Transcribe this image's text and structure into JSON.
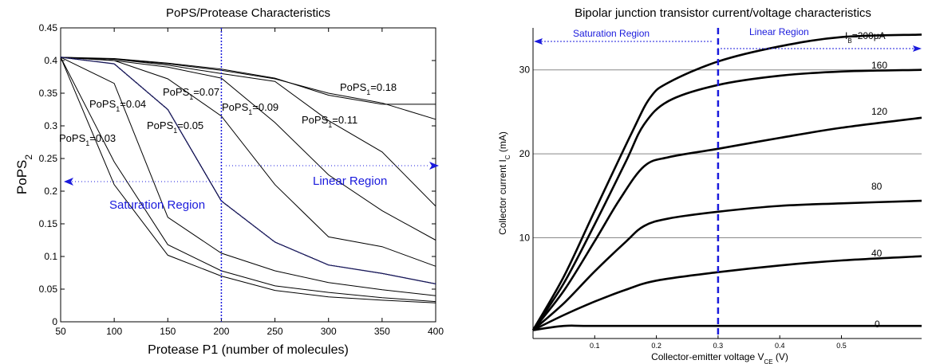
{
  "chart_data": [
    {
      "type": "line",
      "title": "PoPS/Protease Characteristics",
      "xlabel": "Protease P1 (number of molecules)",
      "ylabel": {
        "base": "PoPS",
        "sub": "2"
      },
      "xlim": [
        50,
        400
      ],
      "ylim": [
        0,
        0.45
      ],
      "xticks": [
        50,
        100,
        150,
        200,
        250,
        300,
        350,
        400
      ],
      "yticks": [
        0,
        0.05,
        0.1,
        0.15,
        0.2,
        0.25,
        0.3,
        0.35,
        0.4,
        0.45
      ],
      "ytick_labels": [
        "0",
        "0.05",
        "0.1",
        "0.15",
        "0.2",
        "0.25",
        "0.3",
        "0.35",
        "0.4",
        "0.45"
      ],
      "grid": false,
      "x": [
        50,
        100,
        150,
        200,
        250,
        300,
        350,
        400
      ],
      "series": [
        {
          "values": [
            0.405,
            0.21,
            0.102,
            0.07,
            0.048,
            0.038,
            0.033,
            0.029
          ]
        },
        {
          "values": [
            0.405,
            0.245,
            0.118,
            0.078,
            0.055,
            0.045,
            0.037,
            0.031
          ]
        },
        {
          "values": [
            0.405,
            0.365,
            0.16,
            0.105,
            0.078,
            0.06,
            0.049,
            0.04
          ]
        },
        {
          "values": [
            0.405,
            0.395,
            0.325,
            0.185,
            0.122,
            0.087,
            0.074,
            0.058
          ]
        },
        {
          "values": [
            0.405,
            0.4,
            0.372,
            0.315,
            0.21,
            0.13,
            0.115,
            0.085
          ]
        },
        {
          "values": [
            0.405,
            0.4,
            0.39,
            0.373,
            0.305,
            0.225,
            0.17,
            0.125
          ]
        },
        {
          "values": [
            0.405,
            0.402,
            0.393,
            0.38,
            0.368,
            0.308,
            0.26,
            0.177
          ]
        },
        {
          "values": [
            0.405,
            0.402,
            0.395,
            0.385,
            0.372,
            0.35,
            0.335,
            0.31
          ]
        },
        {
          "values": [
            0.405,
            0.403,
            0.396,
            0.387,
            0.373,
            0.347,
            0.333,
            0.333
          ]
        }
      ],
      "annotations": [
        {
          "base": "PoPS",
          "sub": "1",
          "text": "=0.03"
        },
        {
          "base": "PoPS",
          "sub": "1",
          "text": "=0.04"
        },
        {
          "base": "PoPS",
          "sub": "1",
          "text": "=0.05"
        },
        {
          "base": "PoPS",
          "sub": "1",
          "text": "=0.07"
        },
        {
          "base": "PoPS",
          "sub": "1",
          "text": "=0.09"
        },
        {
          "base": "PoPS",
          "sub": "1",
          "text": "=0.11"
        },
        {
          "base": "PoPS",
          "sub": "1",
          "text": "=0.18"
        }
      ],
      "regions": {
        "saturation": "Saturation Region",
        "linear": "Linear Region"
      },
      "divider_x": 200,
      "colors": {
        "curves": "#000000",
        "regions": "#1a1adc"
      }
    },
    {
      "type": "line",
      "title": "Bipolar junction transistor current/voltage characteristics",
      "xlabel": {
        "base": "Collector-emitter voltage V",
        "sub": "CE",
        "suffix": " (V)"
      },
      "ylabel": {
        "base": "Collector current I",
        "sub": "C",
        "suffix": " (mA)"
      },
      "xlim": [
        0,
        0.63
      ],
      "ylim": [
        -2,
        35
      ],
      "xticks": [
        0.1,
        0.2,
        0.3,
        0.4,
        0.5
      ],
      "yticks": [
        10,
        20,
        30
      ],
      "grid": "horizontal at 10, 20, 30",
      "series": [
        {
          "label": "0",
          "points": [
            [
              0,
              -1
            ],
            [
              0.05,
              -0.5
            ],
            [
              0.1,
              -0.5
            ],
            [
              0.3,
              -0.5
            ],
            [
              0.63,
              -0.5
            ]
          ]
        },
        {
          "label": "40",
          "points": [
            [
              0,
              -1
            ],
            [
              0.05,
              0.8
            ],
            [
              0.1,
              2.4
            ],
            [
              0.15,
              3.8
            ],
            [
              0.2,
              4.9
            ],
            [
              0.3,
              5.9
            ],
            [
              0.4,
              6.7
            ],
            [
              0.5,
              7.3
            ],
            [
              0.63,
              7.8
            ]
          ]
        },
        {
          "label": "80",
          "points": [
            [
              0,
              -1
            ],
            [
              0.05,
              2.2
            ],
            [
              0.1,
              6
            ],
            [
              0.15,
              9.5
            ],
            [
              0.18,
              11.4
            ],
            [
              0.22,
              12.3
            ],
            [
              0.3,
              13.1
            ],
            [
              0.4,
              13.8
            ],
            [
              0.5,
              14.1
            ],
            [
              0.63,
              14.4
            ]
          ]
        },
        {
          "label": "120",
          "points": [
            [
              0,
              -1
            ],
            [
              0.05,
              3.7
            ],
            [
              0.1,
              9.6
            ],
            [
              0.14,
              14.5
            ],
            [
              0.18,
              18.5
            ],
            [
              0.22,
              19.6
            ],
            [
              0.3,
              20.6
            ],
            [
              0.4,
              21.9
            ],
            [
              0.5,
              23.1
            ],
            [
              0.63,
              24.3
            ]
          ]
        },
        {
          "label": "160",
          "points": [
            [
              0,
              -1
            ],
            [
              0.05,
              4.6
            ],
            [
              0.1,
              11.6
            ],
            [
              0.15,
              19
            ],
            [
              0.18,
              23.5
            ],
            [
              0.22,
              26.3
            ],
            [
              0.3,
              28.2
            ],
            [
              0.4,
              29.3
            ],
            [
              0.5,
              29.8
            ],
            [
              0.63,
              30
            ]
          ]
        },
        {
          "label": "I_B=200μA",
          "points": [
            [
              0,
              -1
            ],
            [
              0.05,
              5.4
            ],
            [
              0.1,
              13.2
            ],
            [
              0.16,
              22.5
            ],
            [
              0.19,
              26.7
            ],
            [
              0.22,
              28.5
            ],
            [
              0.3,
              31
            ],
            [
              0.4,
              32.8
            ],
            [
              0.5,
              33.9
            ],
            [
              0.63,
              34.2
            ]
          ]
        }
      ],
      "curve_labels": {
        "ib": {
          "base": "I",
          "sub": "B",
          "text": "=200μA"
        },
        "160": "160",
        "120": "120",
        "80": "80",
        "40": "40",
        "0": "0"
      },
      "regions": {
        "saturation": "Saturation Region",
        "linear": "Linear Region"
      },
      "divider_x": 0.3,
      "colors": {
        "curves": "#000000",
        "regions": "#1a1adc",
        "grid": "#888888"
      }
    }
  ]
}
